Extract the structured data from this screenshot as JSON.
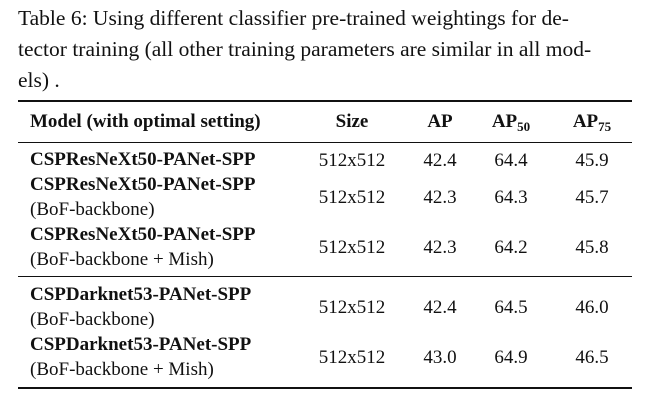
{
  "caption": {
    "lines": [
      "Table 6: Using different classifier pre-trained weightings for de-",
      "tector training (all other training parameters are similar in all mod-",
      "els) ."
    ]
  },
  "table": {
    "header": [
      {
        "text": "Model (with optimal setting)"
      },
      {
        "text": "Size"
      },
      {
        "text": "AP"
      },
      {
        "text": "AP",
        "sub": "50"
      },
      {
        "text": "AP",
        "sub": "75"
      }
    ],
    "groups": [
      [
        {
          "model": "CSPResNeXt50-PANet-SPP",
          "size": "512x512",
          "ap": "42.4",
          "ap50": "64.4",
          "ap75": "45.9"
        },
        {
          "model": "CSPResNeXt50-PANet-SPP",
          "note": "(BoF-backbone)",
          "size": "512x512",
          "ap": "42.3",
          "ap50": "64.3",
          "ap75": "45.7"
        },
        {
          "model": "CSPResNeXt50-PANet-SPP",
          "note": "(BoF-backbone + Mish)",
          "size": "512x512",
          "ap": "42.3",
          "ap50": "64.2",
          "ap75": "45.8"
        }
      ],
      [
        {
          "model": "CSPDarknet53-PANet-SPP",
          "note": "(BoF-backbone)",
          "size": "512x512",
          "ap": "42.4",
          "ap50": "64.5",
          "ap75": "46.0"
        },
        {
          "model": "CSPDarknet53-PANet-SPP",
          "note": "(BoF-backbone + Mish)",
          "size": "512x512",
          "ap": "43.0",
          "ap50": "64.9",
          "ap75": "46.5"
        }
      ]
    ]
  }
}
